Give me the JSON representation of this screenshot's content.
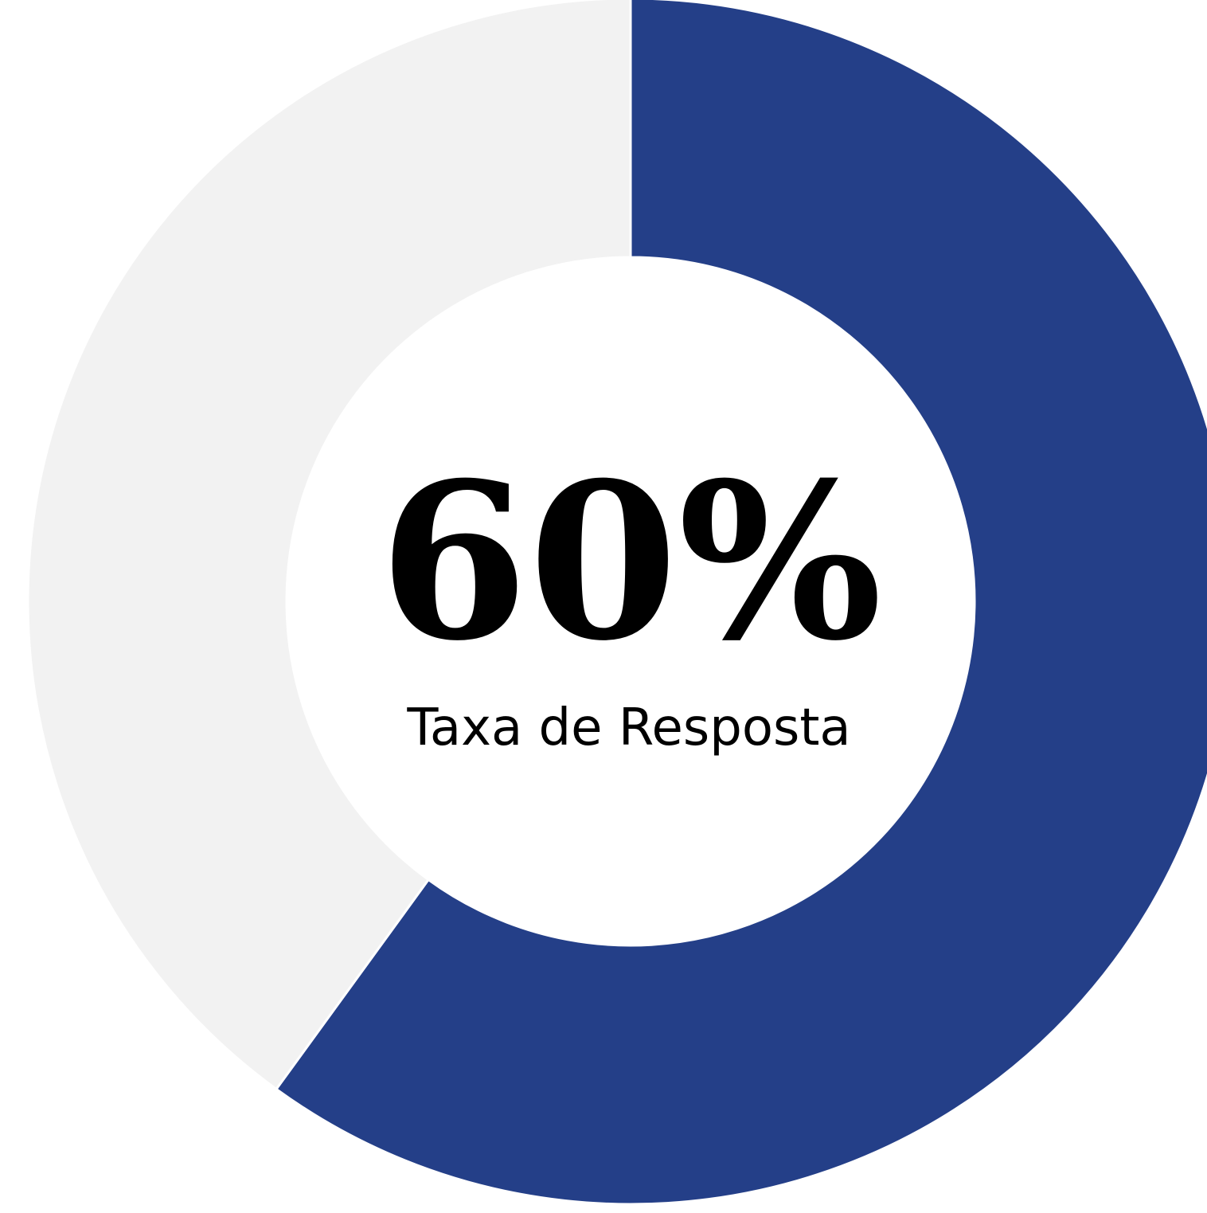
{
  "chart_data": {
    "type": "donut",
    "label": "Taxa de Resposta",
    "values": [
      60,
      40
    ],
    "value_labels": [
      "60%",
      null
    ],
    "colors": [
      "#243f88",
      "#f2f2f2"
    ]
  }
}
